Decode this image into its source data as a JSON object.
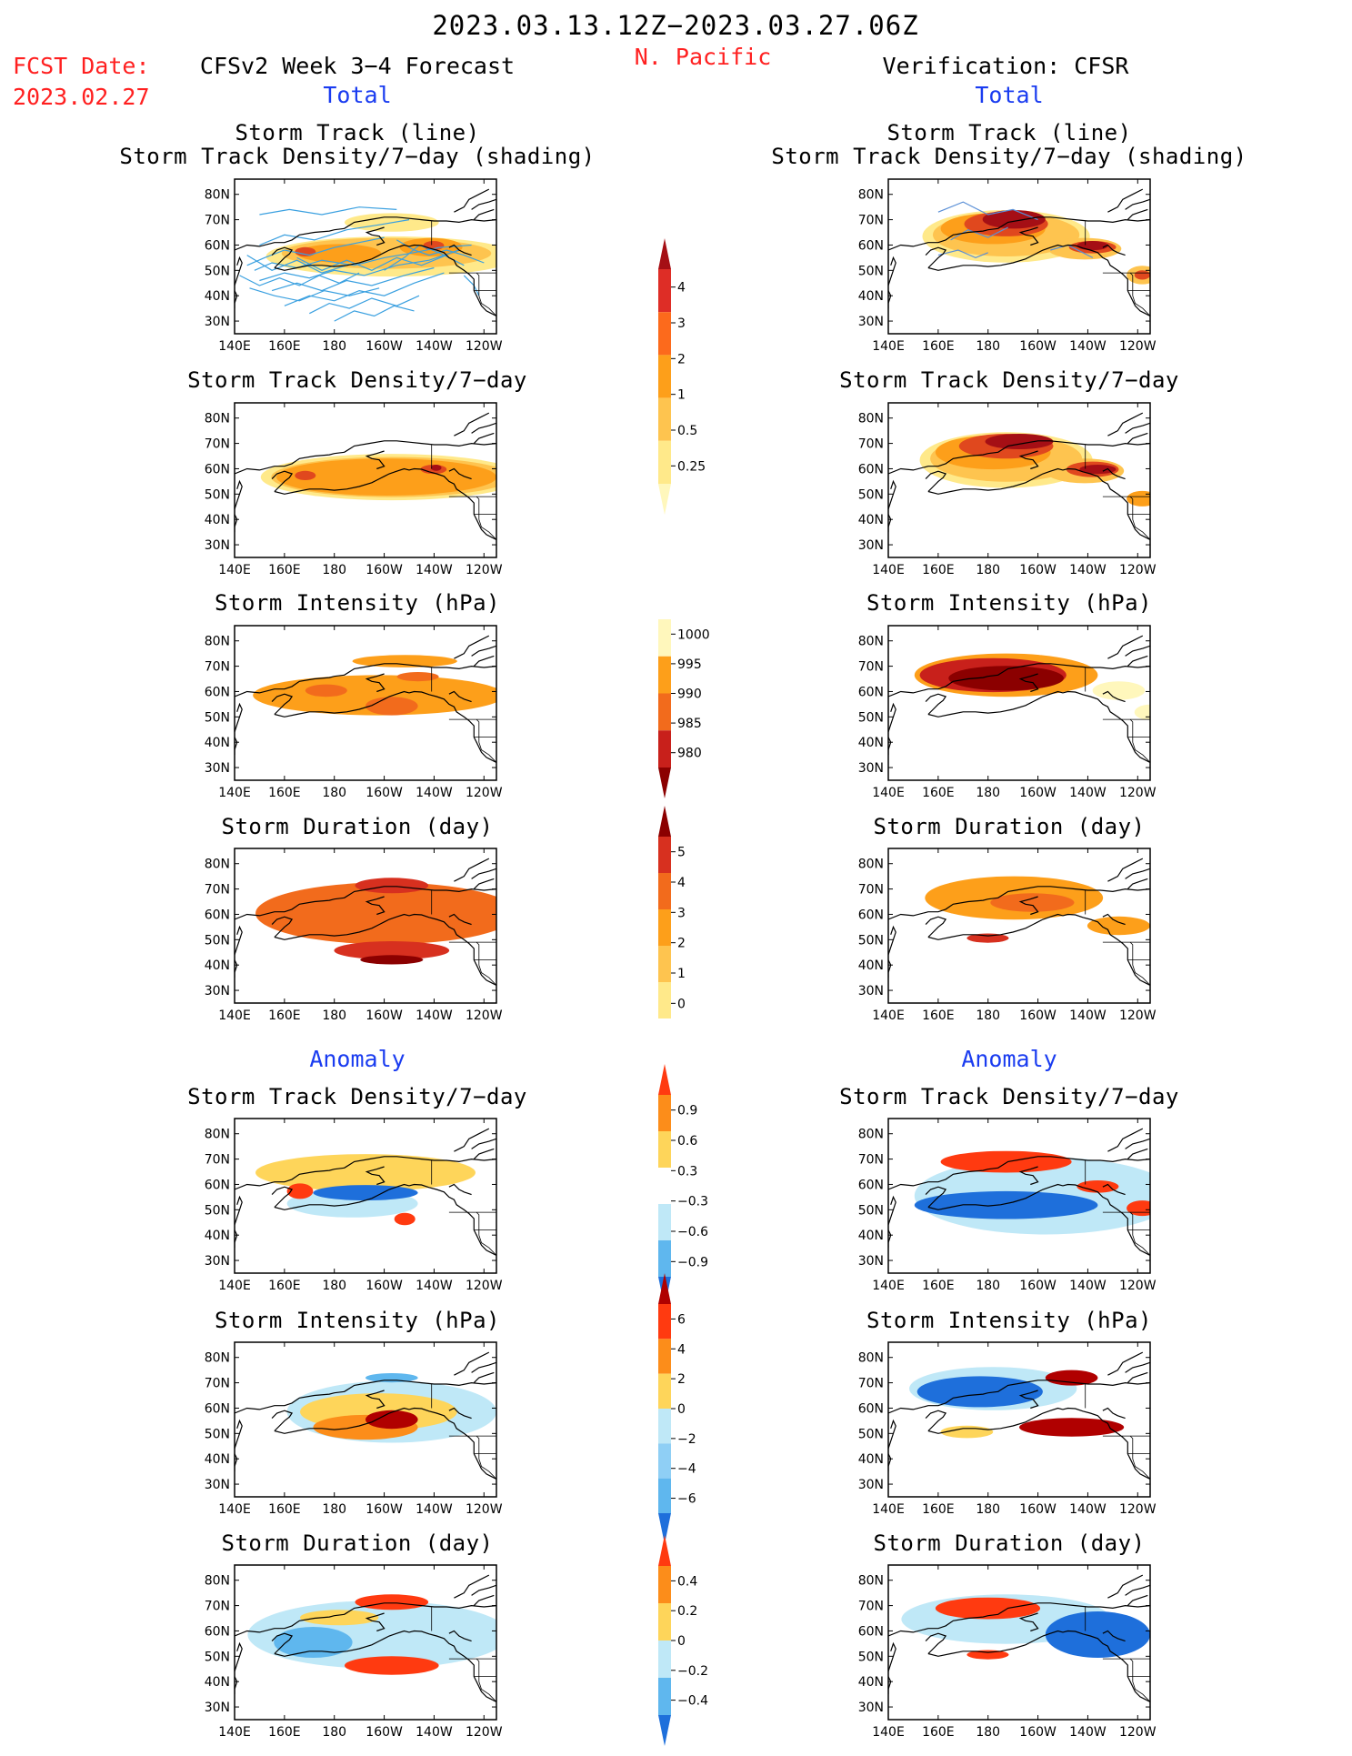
{
  "header": {
    "date_range": "2023.03.13.12Z−2023.03.27.06Z",
    "region": "N. Pacific",
    "fcst_label": "FCST Date:",
    "fcst_date": "2023.02.27",
    "model_title": "CFSv2 Week 3−4 Forecast",
    "verif_title": "Verification: CFSR",
    "total_left": "Total",
    "total_right": "Total",
    "anomaly_left": "Anomaly",
    "anomaly_right": "Anomaly"
  },
  "panel_titles": {
    "track_line": "Storm Track (line)",
    "track_shading": "Storm Track Density/7−day (shading)",
    "density": "Storm Track Density/7−day",
    "intensity": "Storm Intensity (hPa)",
    "duration": "Storm Duration (day)"
  },
  "axes": {
    "lat_labels": [
      "80N",
      "70N",
      "60N",
      "50N",
      "40N",
      "30N"
    ],
    "lon_labels": [
      "140E",
      "160E",
      "180",
      "160W",
      "140W",
      "120W"
    ]
  },
  "colorbars": {
    "density_total": {
      "labels": [
        "4",
        "3",
        "2",
        "1",
        "0.5",
        "0.25"
      ],
      "colors": [
        "#a50f15",
        "#de2d26",
        "#fc6a1c",
        "#fd9f1a",
        "#fec44f",
        "#ffe98a",
        "#fff7bc"
      ]
    },
    "intensity_total": {
      "labels": [
        "1000",
        "995",
        "990",
        "985",
        "980"
      ],
      "colors": [
        "#ffffff",
        "#fff7bc",
        "#fd9f1a",
        "#f26b1c",
        "#c8201b",
        "#8b0000"
      ]
    },
    "duration_total": {
      "labels": [
        "5",
        "4",
        "3",
        "2",
        "1",
        "0"
      ],
      "colors": [
        "#8b0000",
        "#d7301f",
        "#f26b1c",
        "#fd9f1a",
        "#fec44f",
        "#ffe98a",
        "#ffffff"
      ]
    },
    "density_anom": {
      "labels": [
        "0.9",
        "0.6",
        "0.3",
        "−0.3",
        "−0.6",
        "−0.9"
      ],
      "colors": [
        "#ff3a10",
        "#fc8d1a",
        "#fed55a",
        "#ffffff",
        "#bfe8f7",
        "#5fb7ee",
        "#1e6fdb"
      ]
    },
    "intensity_anom": {
      "labels": [
        "6",
        "4",
        "2",
        "0",
        "−2",
        "−4",
        "−6"
      ],
      "colors": [
        "#b00000",
        "#ff3a10",
        "#fc8d1a",
        "#fed55a",
        "#bfe8f7",
        "#8fcff5",
        "#5fb7ee",
        "#1e6fdb"
      ]
    },
    "duration_anom": {
      "labels": [
        "0.4",
        "0.2",
        "0",
        "−0.2",
        "−0.4"
      ],
      "colors": [
        "#ff3a10",
        "#fc8d1a",
        "#fed55a",
        "#bfe8f7",
        "#5fb7ee",
        "#1e6fdb"
      ]
    }
  },
  "maps": [
    {
      "id": "fcst-track",
      "blobs": [
        [
          "#ffe98a",
          60,
          50,
          48,
          13
        ],
        [
          "#fec44f",
          58,
          52,
          40,
          10
        ],
        [
          "#fd9f1a",
          40,
          52,
          16,
          6
        ],
        [
          "#fd9f1a",
          75,
          56,
          12,
          6
        ],
        [
          "#e0481e",
          27,
          53,
          4,
          3
        ],
        [
          "#e0481e",
          76,
          57,
          4,
          3
        ],
        [
          "#ffe98a",
          60,
          72,
          18,
          6
        ]
      ],
      "tracks": true
    },
    {
      "id": "verif-track",
      "blobs": [
        [
          "#ffe98a",
          45,
          63,
          32,
          17
        ],
        [
          "#fec44f",
          45,
          64,
          28,
          14
        ],
        [
          "#fd9f1a",
          40,
          68,
          20,
          10
        ],
        [
          "#e0481e",
          45,
          71,
          16,
          8
        ],
        [
          "#a50f15",
          48,
          74,
          12,
          6
        ],
        [
          "#fec44f",
          75,
          55,
          14,
          7
        ],
        [
          "#e0481e",
          78,
          56,
          9,
          4
        ],
        [
          "#a50f15",
          78,
          57,
          6,
          3
        ],
        [
          "#fec44f",
          97,
          38,
          6,
          6
        ],
        [
          "#e0481e",
          97,
          38,
          3,
          3
        ]
      ],
      "tracks": false
    },
    {
      "id": "fcst-density",
      "blobs": [
        [
          "#ffe98a",
          60,
          52,
          50,
          15
        ],
        [
          "#fec44f",
          60,
          52,
          46,
          13
        ],
        [
          "#fd9f1a",
          58,
          52,
          42,
          12
        ],
        [
          "#e0481e",
          27,
          53,
          4,
          3
        ],
        [
          "#e0481e",
          76,
          57,
          5,
          3
        ],
        [
          "#a50f15",
          77,
          58,
          2,
          2
        ]
      ],
      "tracks": false
    },
    {
      "id": "verif-density",
      "blobs": [
        [
          "#ffe98a",
          45,
          63,
          33,
          18
        ],
        [
          "#fec44f",
          45,
          64,
          29,
          15
        ],
        [
          "#fd9f1a",
          40,
          68,
          22,
          11
        ],
        [
          "#e0481e",
          45,
          72,
          18,
          8
        ],
        [
          "#a50f15",
          50,
          75,
          13,
          5
        ],
        [
          "#fec44f",
          75,
          56,
          15,
          8
        ],
        [
          "#e0481e",
          78,
          57,
          10,
          5
        ],
        [
          "#a50f15",
          80,
          57,
          7,
          3
        ],
        [
          "#fd9f1a",
          97,
          38,
          6,
          5
        ]
      ],
      "tracks": false
    },
    {
      "id": "fcst-intensity",
      "blobs": [
        [
          "#fd9f1a",
          55,
          55,
          48,
          13
        ],
        [
          "#f26b1c",
          35,
          58,
          8,
          4
        ],
        [
          "#f26b1c",
          60,
          48,
          10,
          6
        ],
        [
          "#f26b1c",
          70,
          67,
          8,
          3
        ],
        [
          "#fd9f1a",
          65,
          77,
          20,
          4
        ]
      ],
      "tracks": false
    },
    {
      "id": "verif-intensity",
      "blobs": [
        [
          "#fd9f1a",
          45,
          68,
          35,
          14
        ],
        [
          "#c8201b",
          40,
          68,
          28,
          11
        ],
        [
          "#8b0000",
          45,
          66,
          22,
          8
        ],
        [
          "#fff7bc",
          88,
          58,
          10,
          6
        ],
        [
          "#fff7bc",
          100,
          44,
          6,
          5
        ]
      ],
      "tracks": false
    },
    {
      "id": "fcst-duration",
      "blobs": [
        [
          "#f26b1c",
          58,
          58,
          50,
          20
        ],
        [
          "#d7301f",
          60,
          34,
          22,
          6
        ],
        [
          "#d7301f",
          60,
          76,
          14,
          5
        ],
        [
          "#8b0000",
          60,
          28,
          12,
          3
        ]
      ],
      "tracks": false
    },
    {
      "id": "verif-duration",
      "blobs": [
        [
          "#fd9f1a",
          48,
          68,
          34,
          14
        ],
        [
          "#f26b1c",
          55,
          65,
          16,
          6
        ],
        [
          "#d7301f",
          38,
          42,
          8,
          3
        ],
        [
          "#fd9f1a",
          88,
          50,
          12,
          6
        ]
      ],
      "tracks": false
    },
    {
      "id": "fcst-density-anom",
      "blobs": [
        [
          "#fed55a",
          50,
          65,
          42,
          12
        ],
        [
          "#bfe8f7",
          45,
          45,
          25,
          9
        ],
        [
          "#1e6fdb",
          50,
          52,
          20,
          5
        ],
        [
          "#ff3a10",
          25,
          53,
          5,
          5
        ],
        [
          "#ff3a10",
          65,
          35,
          4,
          4
        ]
      ],
      "tracks": false
    },
    {
      "id": "verif-density-anom",
      "blobs": [
        [
          "#bfe8f7",
          60,
          50,
          50,
          25
        ],
        [
          "#1e6fdb",
          45,
          44,
          35,
          9
        ],
        [
          "#ff3a10",
          45,
          72,
          25,
          7
        ],
        [
          "#ff3a10",
          80,
          56,
          8,
          4
        ],
        [
          "#ff3a10",
          97,
          42,
          6,
          5
        ]
      ],
      "tracks": false
    },
    {
      "id": "fcst-intensity-anom",
      "blobs": [
        [
          "#bfe8f7",
          60,
          55,
          40,
          20
        ],
        [
          "#fed55a",
          55,
          55,
          30,
          12
        ],
        [
          "#fc8d1a",
          50,
          45,
          20,
          8
        ],
        [
          "#b00000",
          60,
          50,
          10,
          6
        ],
        [
          "#5fb7ee",
          60,
          77,
          10,
          3
        ]
      ],
      "tracks": false
    },
    {
      "id": "verif-intensity-anom",
      "blobs": [
        [
          "#bfe8f7",
          40,
          70,
          32,
          14
        ],
        [
          "#1e6fdb",
          35,
          68,
          24,
          10
        ],
        [
          "#b00000",
          70,
          45,
          20,
          6
        ],
        [
          "#b00000",
          70,
          77,
          10,
          5
        ],
        [
          "#fed55a",
          30,
          42,
          10,
          4
        ]
      ],
      "tracks": false
    },
    {
      "id": "fcst-duration-anom",
      "blobs": [
        [
          "#bfe8f7",
          55,
          55,
          50,
          22
        ],
        [
          "#5fb7ee",
          30,
          50,
          15,
          10
        ],
        [
          "#ff3a10",
          60,
          35,
          18,
          6
        ],
        [
          "#ff3a10",
          60,
          76,
          14,
          5
        ],
        [
          "#fed55a",
          40,
          66,
          15,
          5
        ]
      ],
      "tracks": false
    },
    {
      "id": "verif-duration-anom",
      "blobs": [
        [
          "#bfe8f7",
          45,
          65,
          40,
          16
        ],
        [
          "#1e6fdb",
          80,
          55,
          20,
          15
        ],
        [
          "#ff3a10",
          38,
          72,
          20,
          7
        ],
        [
          "#ff3a10",
          38,
          42,
          8,
          3
        ]
      ],
      "tracks": false
    }
  ]
}
